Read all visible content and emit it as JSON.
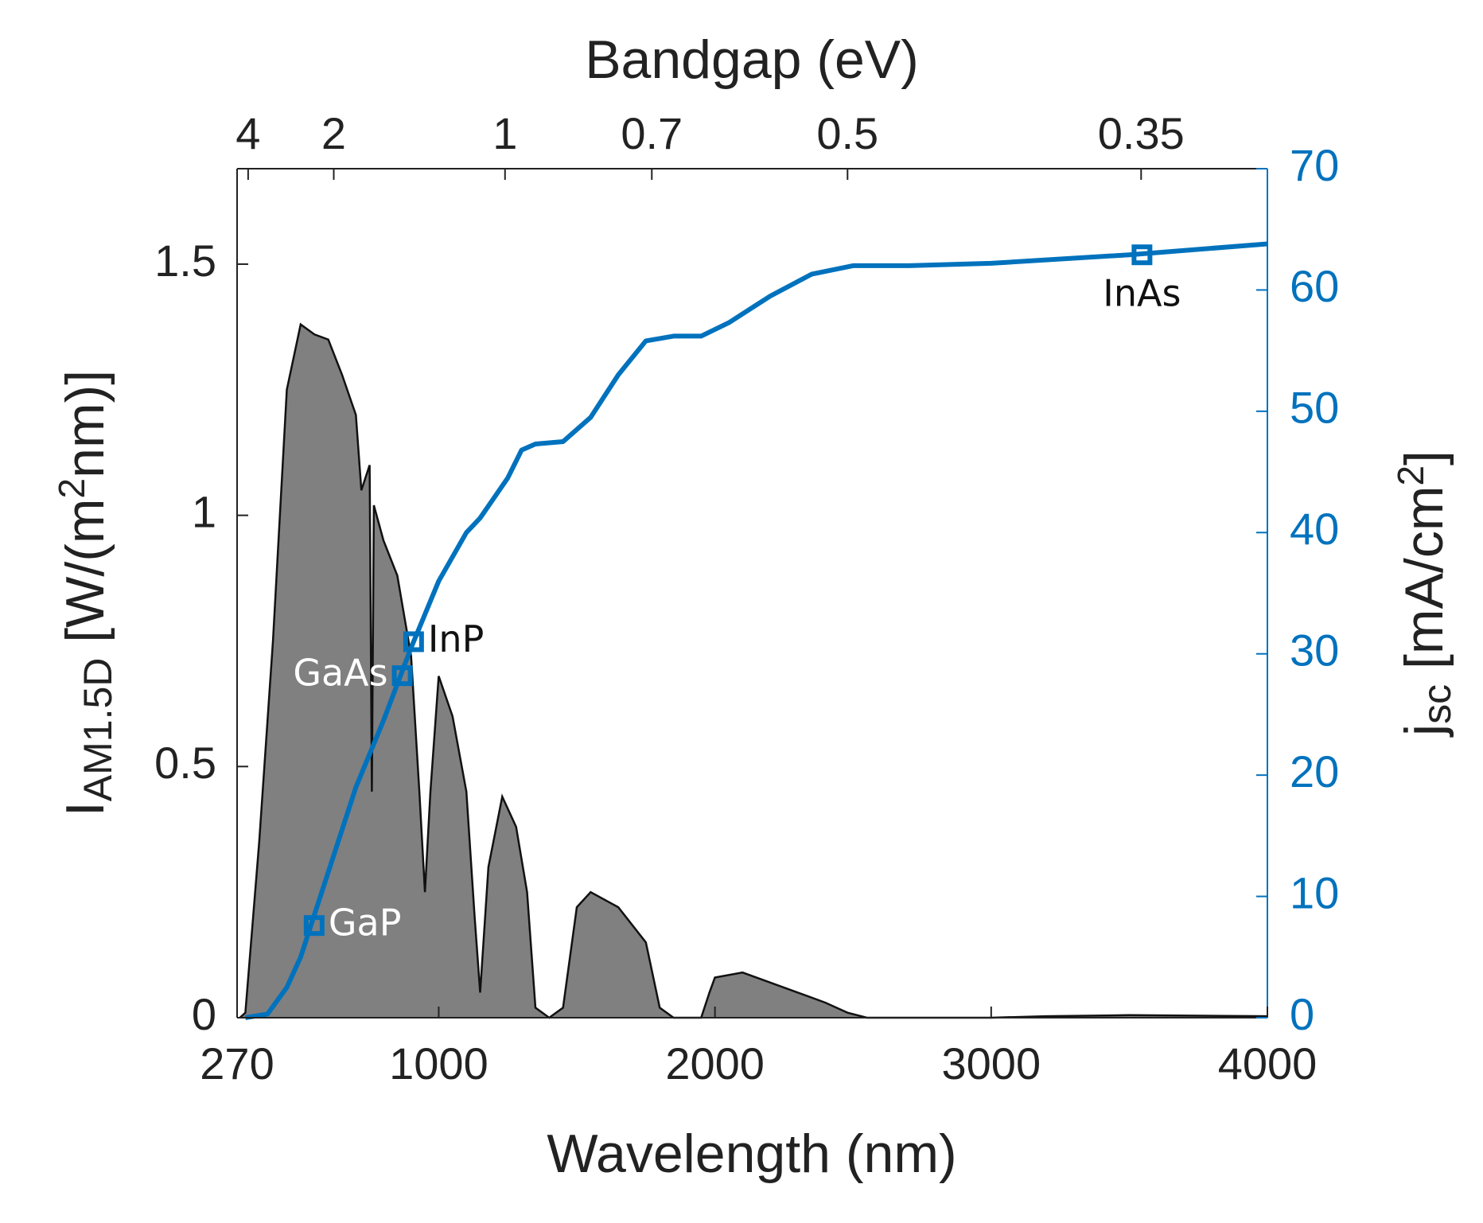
{
  "chart_data": {
    "type": "line",
    "xlabel": "Wavelength (nm)",
    "x2label": "Bandgap (eV)",
    "ylabel_parts": [
      {
        "text": "I"
      },
      {
        "text": "AM1.5D",
        "sub": true
      },
      {
        "text": " [W/(m"
      },
      {
        "text": "2",
        "sup": true
      },
      {
        "text": "nm)]"
      }
    ],
    "y2label_parts": [
      {
        "text": "j"
      },
      {
        "text": "sc",
        "sub": true
      },
      {
        "text": " [mA/cm"
      },
      {
        "text": "2",
        "sup": true
      },
      {
        "text": "]"
      }
    ],
    "xlim": [
      270,
      4000
    ],
    "xticks": [
      270,
      1000,
      2000,
      3000,
      4000
    ],
    "x2ticks": [
      4,
      2,
      1,
      0.7,
      0.5,
      0.35
    ],
    "ylim": [
      0,
      1.69
    ],
    "yticks": [
      0,
      0.5,
      1,
      1.5
    ],
    "y2lim": [
      0,
      70
    ],
    "y2ticks": [
      0,
      10,
      20,
      30,
      40,
      50,
      60,
      70
    ],
    "y2color": "#0072bd",
    "series": [
      {
        "name": "AM1.5D",
        "style": "area",
        "color": "#808080",
        "edge": "#111111",
        "x": [
          280,
          300,
          350,
          400,
          450,
          500,
          550,
          600,
          650,
          700,
          720,
          750,
          758,
          765,
          800,
          850,
          900,
          930,
          950,
          970,
          1000,
          1050,
          1100,
          1130,
          1150,
          1180,
          1230,
          1280,
          1320,
          1350,
          1400,
          1450,
          1500,
          1550,
          1650,
          1750,
          1800,
          1850,
          1950,
          1980,
          2000,
          2100,
          2200,
          2300,
          2400,
          2480,
          2550,
          3000,
          3200,
          3500,
          4000
        ],
        "values": [
          0,
          0.01,
          0.35,
          0.75,
          1.25,
          1.38,
          1.36,
          1.35,
          1.28,
          1.2,
          1.05,
          1.1,
          0.45,
          1.02,
          0.95,
          0.88,
          0.72,
          0.45,
          0.25,
          0.45,
          0.68,
          0.6,
          0.45,
          0.2,
          0.05,
          0.3,
          0.44,
          0.38,
          0.25,
          0.02,
          0,
          0.02,
          0.22,
          0.25,
          0.22,
          0.15,
          0.02,
          0,
          0,
          0.05,
          0.08,
          0.09,
          0.07,
          0.05,
          0.03,
          0.01,
          0,
          0,
          0.003,
          0.005,
          0.003
        ]
      },
      {
        "name": "jsc",
        "style": "line",
        "axis": "y2",
        "color": "#0072bd",
        "x": [
          300,
          380,
          450,
          500,
          550,
          600,
          700,
          800,
          900,
          1000,
          1100,
          1150,
          1250,
          1300,
          1350,
          1450,
          1550,
          1650,
          1750,
          1850,
          1950,
          2050,
          2200,
          2350,
          2500,
          2700,
          3000,
          3500,
          4000
        ],
        "values": [
          0,
          0.3,
          2.5,
          5,
          8.5,
          12,
          19,
          24.5,
          30.5,
          36,
          40,
          41.2,
          44.5,
          46.8,
          47.3,
          47.5,
          49.5,
          53,
          55.8,
          56.2,
          56.2,
          57.3,
          59.5,
          61.3,
          62,
          62,
          62.2,
          62.9,
          63.8
        ]
      }
    ],
    "markers": [
      {
        "name": "GaP",
        "x": 549,
        "value": 7.6,
        "label_color": "#ffffff",
        "side": "right"
      },
      {
        "name": "GaAs",
        "x": 868,
        "value": 28.2,
        "label_color": "#ffffff",
        "side": "left"
      },
      {
        "name": "InP",
        "x": 909,
        "value": 31.0,
        "label_color": "#111111",
        "side": "right"
      },
      {
        "name": "InAs",
        "x": 3546,
        "value": 62.9,
        "label_color": "#111111",
        "side": "below"
      }
    ]
  }
}
